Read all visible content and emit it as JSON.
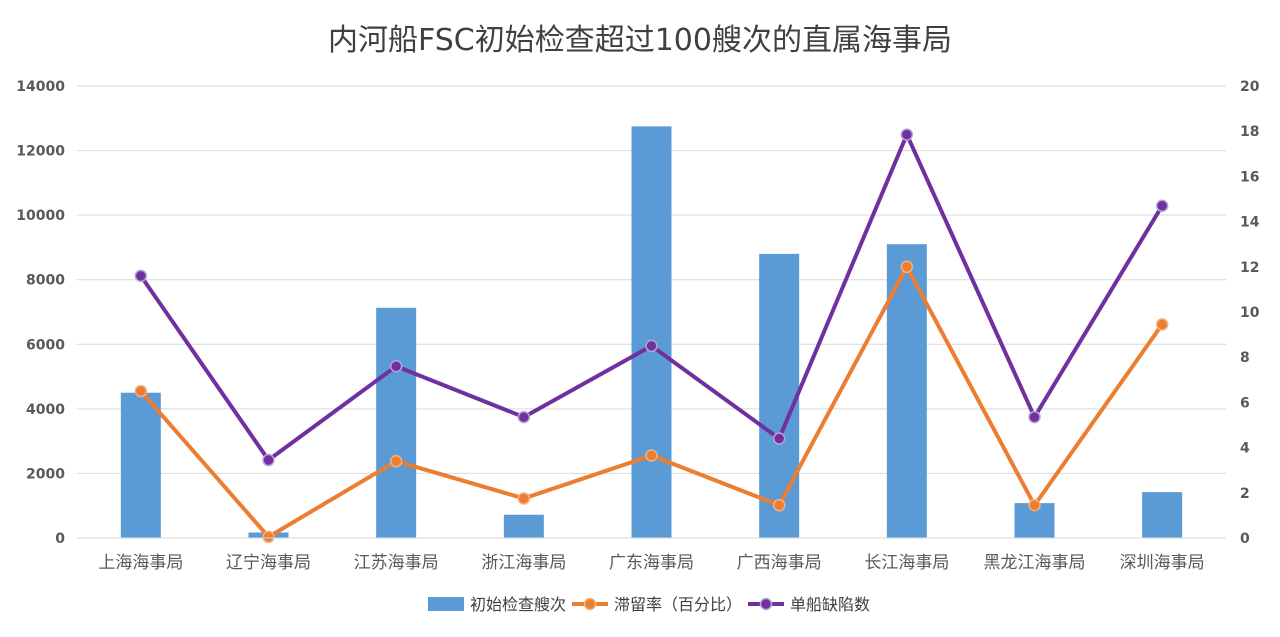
{
  "chart_data": {
    "type": "bar",
    "title": "内河船FSC初始检查超过100艘次的直属海事局",
    "categories": [
      "上海海事局",
      "辽宁海事局",
      "江苏海事局",
      "浙江海事局",
      "广东海事局",
      "广西海事局",
      "长江海事局",
      "黑龙江海事局",
      "深圳海事局"
    ],
    "series": [
      {
        "name": "初始检查艘次",
        "kind": "bar",
        "axis": "left",
        "color": "#5B9BD5",
        "values": [
          4500,
          170,
          7130,
          720,
          12750,
          8800,
          9100,
          1080,
          1420
        ]
      },
      {
        "name": "滞留率（百分比）",
        "kind": "line",
        "axis": "right",
        "color": "#ED7D31",
        "values": [
          6.5,
          0.05,
          3.4,
          1.75,
          3.65,
          1.45,
          12.0,
          1.45,
          9.45
        ]
      },
      {
        "name": "单船缺陷数",
        "kind": "line",
        "axis": "right",
        "color": "#7030A0",
        "values": [
          11.6,
          3.45,
          7.6,
          5.35,
          8.5,
          4.4,
          17.85,
          5.35,
          14.7
        ]
      }
    ],
    "y_left": {
      "min": 0,
      "max": 14000,
      "ticks": [
        0,
        2000,
        4000,
        6000,
        8000,
        10000,
        12000,
        14000
      ]
    },
    "y_right": {
      "min": 0,
      "max": 20,
      "ticks": [
        0,
        2,
        4,
        6,
        8,
        10,
        12,
        14,
        16,
        18,
        20
      ]
    },
    "grid": true,
    "legend_position": "bottom"
  }
}
